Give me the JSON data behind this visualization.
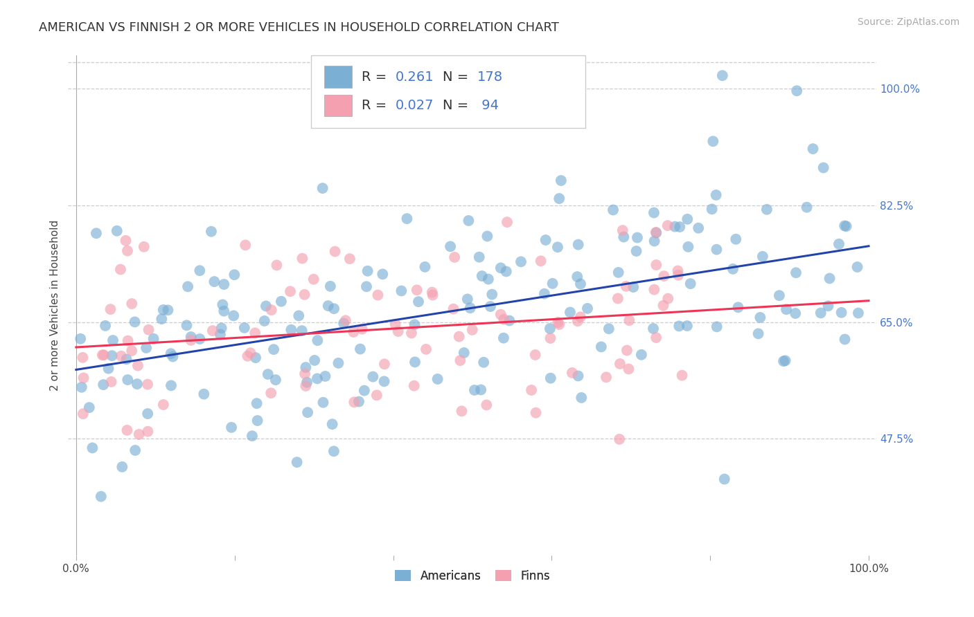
{
  "title": "AMERICAN VS FINNISH 2 OR MORE VEHICLES IN HOUSEHOLD CORRELATION CHART",
  "source": "Source: ZipAtlas.com",
  "ylabel": "2 or more Vehicles in Household",
  "american_color": "#7BAFD4",
  "finnish_color": "#F4A0B0",
  "american_R": 0.261,
  "american_N": 178,
  "finnish_R": 0.027,
  "finnish_N": 94,
  "trend_american_color": "#2244AA",
  "trend_finnish_color": "#EE3355",
  "background_color": "#FFFFFF",
  "grid_color": "#CCCCCC",
  "title_fontsize": 13,
  "axis_label_fontsize": 11,
  "tick_fontsize": 11,
  "legend_fontsize": 14,
  "source_fontsize": 10,
  "ytick_vals": [
    0.475,
    0.65,
    0.825,
    1.0
  ],
  "ytick_labels": [
    "47.5%",
    "65.0%",
    "82.5%",
    "100.0%"
  ],
  "ymin": 0.3,
  "ymax": 1.05,
  "xmin": 0.0,
  "xmax": 1.0,
  "legend_R_N_color": "#4477CC",
  "legend_text_color": "#333333",
  "dot_size": 130,
  "dot_alpha": 0.65
}
